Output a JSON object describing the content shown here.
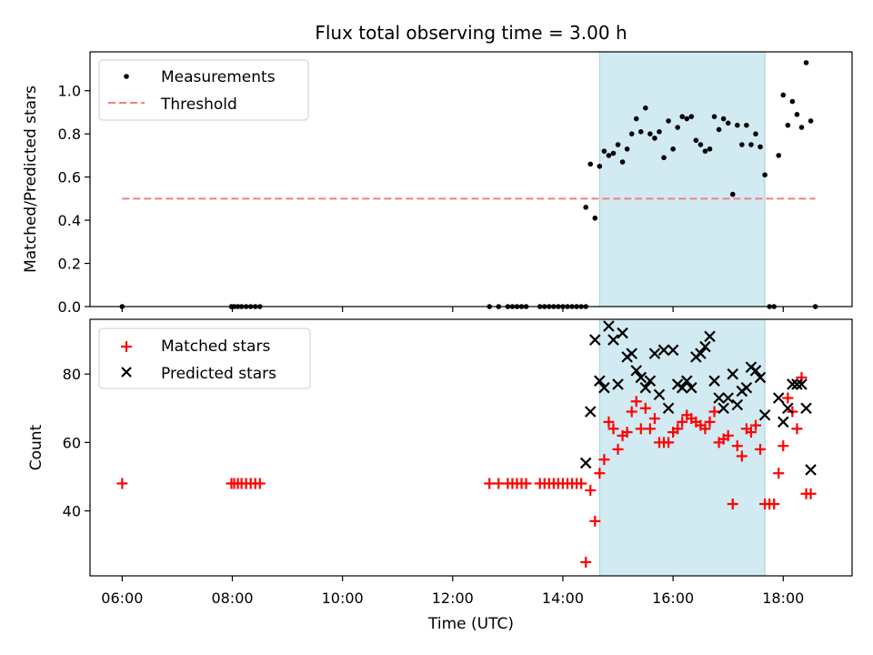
{
  "chart_data": [
    {
      "type": "scatter",
      "title": "Flux total observing time = 3.00 h",
      "xlabel": "",
      "ylabel": "Matched/Predicted stars",
      "x_unit": "time of day (UTC)",
      "xlim": [
        "05:25",
        "19:15"
      ],
      "ylim": [
        0,
        1.18
      ],
      "yticks": [
        "0.0",
        "0.2",
        "0.4",
        "0.6",
        "0.8",
        "1.0"
      ],
      "shaded_interval": [
        "14:40",
        "17:40"
      ],
      "shade_color": "#add8e6",
      "legend_position": "upper-left",
      "series": [
        {
          "name": "Measurements",
          "marker": "dot",
          "color": "#000000",
          "points": [
            [
              "06:00",
              0
            ],
            [
              "07:59",
              0
            ],
            [
              "08:02",
              0
            ],
            [
              "08:06",
              0
            ],
            [
              "08:10",
              0
            ],
            [
              "08:15",
              0
            ],
            [
              "08:20",
              0
            ],
            [
              "08:25",
              0
            ],
            [
              "08:30",
              0
            ],
            [
              "12:40",
              0
            ],
            [
              "12:50",
              0
            ],
            [
              "13:00",
              0
            ],
            [
              "13:05",
              0
            ],
            [
              "13:10",
              0
            ],
            [
              "13:15",
              0
            ],
            [
              "13:20",
              0
            ],
            [
              "13:35",
              0
            ],
            [
              "13:40",
              0
            ],
            [
              "13:45",
              0
            ],
            [
              "13:50",
              0
            ],
            [
              "13:55",
              0
            ],
            [
              "14:00",
              0
            ],
            [
              "14:05",
              0
            ],
            [
              "14:10",
              0
            ],
            [
              "14:15",
              0
            ],
            [
              "14:20",
              0
            ],
            [
              "14:25",
              0
            ],
            [
              "14:25",
              0.46
            ],
            [
              "14:30",
              0.66
            ],
            [
              "14:35",
              0.41
            ],
            [
              "14:40",
              0.65
            ],
            [
              "14:45",
              0.72
            ],
            [
              "14:50",
              0.7
            ],
            [
              "14:55",
              0.71
            ],
            [
              "15:00",
              0.75
            ],
            [
              "15:05",
              0.67
            ],
            [
              "15:10",
              0.73
            ],
            [
              "15:15",
              0.8
            ],
            [
              "15:20",
              0.87
            ],
            [
              "15:25",
              0.81
            ],
            [
              "15:30",
              0.92
            ],
            [
              "15:35",
              0.8
            ],
            [
              "15:40",
              0.78
            ],
            [
              "15:45",
              0.81
            ],
            [
              "15:50",
              0.69
            ],
            [
              "15:55",
              0.86
            ],
            [
              "16:00",
              0.73
            ],
            [
              "16:05",
              0.83
            ],
            [
              "16:10",
              0.88
            ],
            [
              "16:15",
              0.87
            ],
            [
              "16:20",
              0.88
            ],
            [
              "16:25",
              0.77
            ],
            [
              "16:30",
              0.75
            ],
            [
              "16:35",
              0.72
            ],
            [
              "16:40",
              0.73
            ],
            [
              "16:45",
              0.88
            ],
            [
              "16:50",
              0.82
            ],
            [
              "16:55",
              0.87
            ],
            [
              "17:00",
              0.85
            ],
            [
              "17:05",
              0.52
            ],
            [
              "17:10",
              0.84
            ],
            [
              "17:15",
              0.75
            ],
            [
              "17:20",
              0.84
            ],
            [
              "17:25",
              0.75
            ],
            [
              "17:30",
              0.8
            ],
            [
              "17:35",
              0.74
            ],
            [
              "17:40",
              0.61
            ],
            [
              "17:45",
              0
            ],
            [
              "17:50",
              0
            ],
            [
              "17:55",
              0.7
            ],
            [
              "18:00",
              0.98
            ],
            [
              "18:05",
              0.84
            ],
            [
              "18:10",
              0.95
            ],
            [
              "18:15",
              0.89
            ],
            [
              "18:20",
              0.83
            ],
            [
              "18:25",
              1.13
            ],
            [
              "18:30",
              0.86
            ],
            [
              "18:35",
              0
            ]
          ]
        },
        {
          "name": "Threshold",
          "marker": "dashed-line",
          "color": "#f08080",
          "points": [
            [
              "06:00",
              0.5
            ],
            [
              "18:35",
              0.5
            ]
          ]
        }
      ]
    },
    {
      "type": "scatter",
      "title": "",
      "xlabel": "Time (UTC)",
      "ylabel": "Count",
      "x_unit": "time of day (UTC)",
      "xlim": [
        "05:25",
        "19:15"
      ],
      "ylim": [
        21,
        96
      ],
      "xticks": [
        "06:00",
        "08:00",
        "10:00",
        "12:00",
        "14:00",
        "16:00",
        "18:00"
      ],
      "yticks": [
        "40",
        "60",
        "80"
      ],
      "shaded_interval": [
        "14:40",
        "17:40"
      ],
      "shade_color": "#add8e6",
      "legend_position": "upper-left",
      "series": [
        {
          "name": "Matched stars",
          "marker": "plus",
          "color": "#ff0000",
          "points": [
            [
              "06:00",
              48
            ],
            [
              "07:59",
              48
            ],
            [
              "08:02",
              48
            ],
            [
              "08:06",
              48
            ],
            [
              "08:10",
              48
            ],
            [
              "08:15",
              48
            ],
            [
              "08:20",
              48
            ],
            [
              "08:25",
              48
            ],
            [
              "08:30",
              48
            ],
            [
              "12:40",
              48
            ],
            [
              "12:50",
              48
            ],
            [
              "13:00",
              48
            ],
            [
              "13:05",
              48
            ],
            [
              "13:10",
              48
            ],
            [
              "13:15",
              48
            ],
            [
              "13:20",
              48
            ],
            [
              "13:35",
              48
            ],
            [
              "13:40",
              48
            ],
            [
              "13:45",
              48
            ],
            [
              "13:50",
              48
            ],
            [
              "13:55",
              48
            ],
            [
              "14:00",
              48
            ],
            [
              "14:05",
              48
            ],
            [
              "14:10",
              48
            ],
            [
              "14:15",
              48
            ],
            [
              "14:20",
              48
            ],
            [
              "14:25",
              25
            ],
            [
              "14:30",
              46
            ],
            [
              "14:35",
              37
            ],
            [
              "14:40",
              51
            ],
            [
              "14:45",
              55
            ],
            [
              "14:50",
              66
            ],
            [
              "14:55",
              64
            ],
            [
              "15:00",
              58
            ],
            [
              "15:05",
              62
            ],
            [
              "15:10",
              63
            ],
            [
              "15:15",
              69
            ],
            [
              "15:20",
              72
            ],
            [
              "15:25",
              64
            ],
            [
              "15:30",
              70
            ],
            [
              "15:35",
              64
            ],
            [
              "15:40",
              67
            ],
            [
              "15:45",
              60
            ],
            [
              "15:50",
              60
            ],
            [
              "15:55",
              60
            ],
            [
              "16:00",
              63
            ],
            [
              "16:05",
              64
            ],
            [
              "16:10",
              66
            ],
            [
              "16:15",
              68
            ],
            [
              "16:20",
              67
            ],
            [
              "16:25",
              66
            ],
            [
              "16:30",
              65
            ],
            [
              "16:35",
              64
            ],
            [
              "16:40",
              66
            ],
            [
              "16:45",
              69
            ],
            [
              "16:50",
              60
            ],
            [
              "16:55",
              61
            ],
            [
              "17:00",
              62
            ],
            [
              "17:05",
              42
            ],
            [
              "17:10",
              59
            ],
            [
              "17:15",
              56
            ],
            [
              "17:20",
              64
            ],
            [
              "17:25",
              63
            ],
            [
              "17:30",
              65
            ],
            [
              "17:35",
              58
            ],
            [
              "17:40",
              42
            ],
            [
              "17:45",
              42
            ],
            [
              "17:50",
              42
            ],
            [
              "17:55",
              51
            ],
            [
              "18:00",
              59
            ],
            [
              "18:05",
              73
            ],
            [
              "18:10",
              69
            ],
            [
              "18:15",
              64
            ],
            [
              "18:20",
              79
            ],
            [
              "18:25",
              45
            ],
            [
              "18:30",
              45
            ]
          ]
        },
        {
          "name": "Predicted stars",
          "marker": "x",
          "color": "#000000",
          "points": [
            [
              "14:25",
              54
            ],
            [
              "14:30",
              69
            ],
            [
              "14:35",
              90
            ],
            [
              "14:40",
              78
            ],
            [
              "14:45",
              76
            ],
            [
              "14:50",
              94
            ],
            [
              "14:55",
              90
            ],
            [
              "15:00",
              77
            ],
            [
              "15:05",
              92
            ],
            [
              "15:10",
              85
            ],
            [
              "15:15",
              86
            ],
            [
              "15:20",
              81
            ],
            [
              "15:25",
              79
            ],
            [
              "15:30",
              76
            ],
            [
              "15:35",
              78
            ],
            [
              "15:40",
              86
            ],
            [
              "15:45",
              74
            ],
            [
              "15:50",
              87
            ],
            [
              "15:55",
              70
            ],
            [
              "16:00",
              87
            ],
            [
              "16:05",
              77
            ],
            [
              "16:10",
              76
            ],
            [
              "16:15",
              78
            ],
            [
              "16:20",
              76
            ],
            [
              "16:25",
              85
            ],
            [
              "16:30",
              86
            ],
            [
              "16:35",
              88
            ],
            [
              "16:40",
              91
            ],
            [
              "16:45",
              78
            ],
            [
              "16:50",
              73
            ],
            [
              "16:55",
              70
            ],
            [
              "17:00",
              73
            ],
            [
              "17:05",
              80
            ],
            [
              "17:10",
              71
            ],
            [
              "17:15",
              75
            ],
            [
              "17:20",
              76
            ],
            [
              "17:25",
              82
            ],
            [
              "17:30",
              81
            ],
            [
              "17:35",
              79
            ],
            [
              "17:40",
              68
            ],
            [
              "17:55",
              73
            ],
            [
              "18:00",
              66
            ],
            [
              "18:05",
              70
            ],
            [
              "18:10",
              77
            ],
            [
              "18:15",
              77
            ],
            [
              "18:20",
              77
            ],
            [
              "18:25",
              70
            ],
            [
              "18:30",
              52
            ]
          ]
        }
      ]
    }
  ]
}
